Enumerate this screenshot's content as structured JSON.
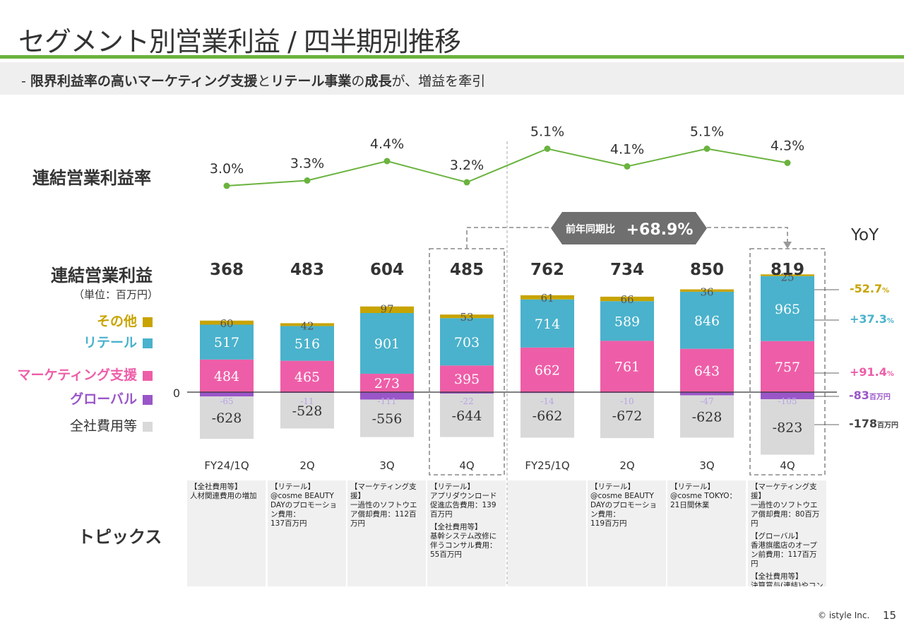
{
  "header": {
    "title": "セグメント別営業利益 / 四半期別推移",
    "subtitle_prefix": "- ",
    "subtitle_parts": [
      {
        "text": "限界利益率の高いマーケティング支援",
        "bold": true
      },
      {
        "text": "と",
        "bold": false
      },
      {
        "text": "リテール事業",
        "bold": true
      },
      {
        "text": "の",
        "bold": false
      },
      {
        "text": "成長",
        "bold": true
      },
      {
        "text": "が、増益を牽引",
        "bold": false
      }
    ]
  },
  "labels": {
    "margin_row": "連結営業利益率",
    "profit_row": "連結営業利益",
    "unit": "（単位：百万円）",
    "topics_row": "トピックス",
    "yoy_head": "YoY",
    "zero": "0",
    "callout_small": "前年同期比",
    "callout_big": "+68.9%"
  },
  "legend": [
    {
      "name": "その他",
      "color": "#c8a400"
    },
    {
      "name": "リテール",
      "color": "#4ab2cc"
    },
    {
      "name": "マーケティング支援",
      "color": "#ee5ea8"
    },
    {
      "name": "グローバル",
      "color": "#9a56c8"
    },
    {
      "name": "全社費用等",
      "color": "#d9d9d9"
    }
  ],
  "chart_data": {
    "type": "bar",
    "stacked": true,
    "categories": [
      "FY24/1Q",
      "2Q",
      "3Q",
      "4Q",
      "FY25/1Q",
      "2Q",
      "3Q",
      "4Q"
    ],
    "series": [
      {
        "name": "その他",
        "values": [
          60,
          42,
          97,
          53,
          61,
          66,
          36,
          25
        ]
      },
      {
        "name": "リテール",
        "values": [
          517,
          516,
          901,
          703,
          714,
          589,
          846,
          965
        ]
      },
      {
        "name": "マーケティング支援",
        "values": [
          484,
          465,
          273,
          395,
          662,
          761,
          643,
          757
        ]
      },
      {
        "name": "グローバル",
        "values": [
          -65,
          -11,
          -111,
          -22,
          -14,
          -10,
          -47,
          -105
        ]
      },
      {
        "name": "全社費用等",
        "values": [
          -628,
          -528,
          -556,
          -644,
          -662,
          -672,
          -628,
          -823
        ]
      }
    ],
    "totals": [
      368,
      483,
      604,
      485,
      762,
      734,
      850,
      819
    ],
    "margin_line": {
      "name": "連結営業利益率",
      "values": [
        3.0,
        3.3,
        4.4,
        3.2,
        5.1,
        4.1,
        5.1,
        4.3
      ],
      "labels": [
        "3.0%",
        "3.3%",
        "4.4%",
        "3.2%",
        "5.1%",
        "4.1%",
        "5.1%",
        "4.3%"
      ]
    },
    "yoy": [
      {
        "series": "その他",
        "text": "-52.7",
        "suffix": "%",
        "color": "#c8a400"
      },
      {
        "series": "リテール",
        "text": "+37.3",
        "suffix": "%",
        "color": "#4ab2cc"
      },
      {
        "series": "マーケティング支援",
        "text": "+91.4",
        "suffix": "%",
        "color": "#ee5ea8"
      },
      {
        "series": "グローバル",
        "text": "-83",
        "suffix": "百万円",
        "color": "#9a56c8"
      },
      {
        "series": "全社費用等",
        "text": "-178",
        "suffix": "百万円",
        "color": "#444444"
      }
    ]
  },
  "topics": [
    [
      "【全社費用等】\n人材関連費用の増加"
    ],
    [
      "【リテール】\n@cosme BEAUTY DAYのプロモーション費用：\n137百万円"
    ],
    [
      "【マーケティング支援】\n一過性のソフトウエア償却費用：112百万円"
    ],
    [
      "【リテール】\nアプリダウンロード促進広告費用：139百万円",
      "【全社費用等】\n基幹システム改修に伴うコンサル費用：55百万円"
    ],
    [],
    [
      "【リテール】\n@cosme BEAUTY DAYのプロモーション費用：\n119百万円"
    ],
    [
      "【リテール】\n@cosme TOKYO：\n21日間休業"
    ],
    [
      "【マーケティング支援】\n一過性のソフトウエア償却費用：80百万円",
      "【グローバル】\n香港旗艦店のオープン前費用：117百万円",
      "【全社費用等】\n決算賞与(連結)やコンサル等の業務委託費"
    ]
  ],
  "footer": {
    "copyright": "© istyle Inc.",
    "page": "15"
  }
}
